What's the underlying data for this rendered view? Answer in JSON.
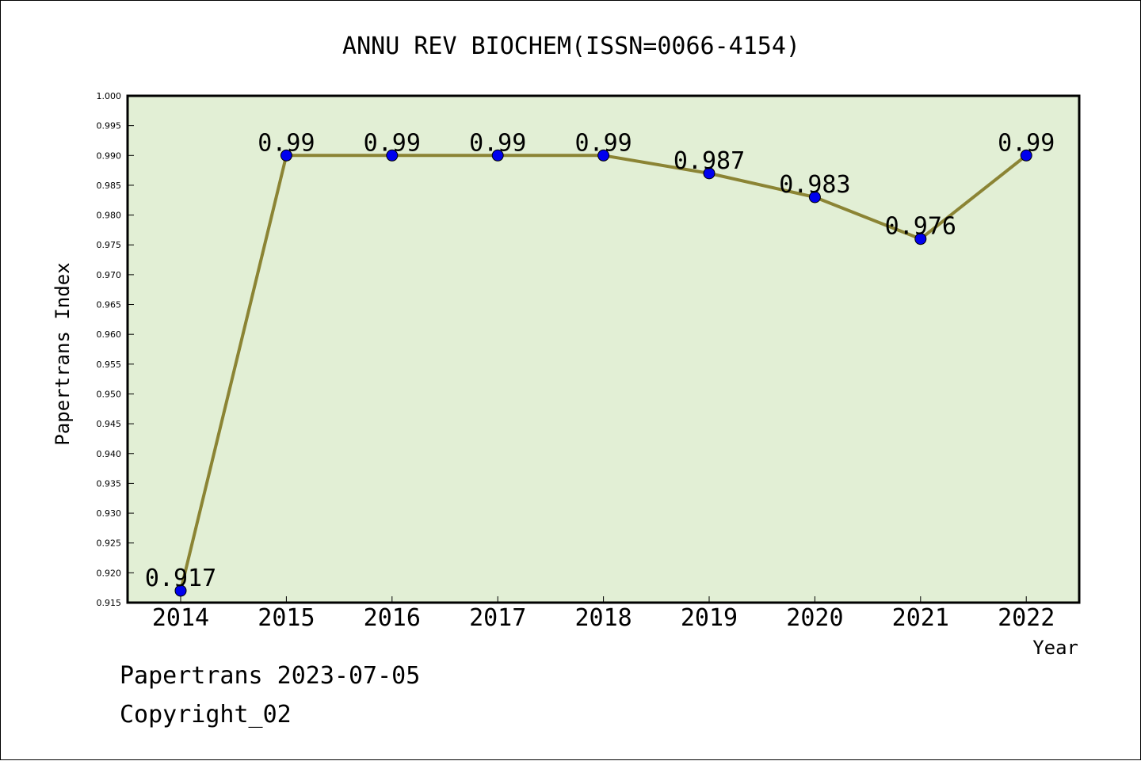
{
  "chart_data": {
    "type": "line",
    "title": "ANNU REV BIOCHEM(ISSN=0066-4154)",
    "xlabel": "Year",
    "ylabel": "Papertrans Index",
    "categories": [
      "2014",
      "2015",
      "2016",
      "2017",
      "2018",
      "2019",
      "2020",
      "2021",
      "2022"
    ],
    "series": [
      {
        "values": [
          0.917,
          0.99,
          0.99,
          0.99,
          0.99,
          0.987,
          0.983,
          0.976,
          0.99
        ],
        "data_labels": [
          "0.917",
          "0.99",
          "0.99",
          "0.99",
          "0.99",
          "0.987",
          "0.983",
          "0.976",
          "0.99"
        ]
      }
    ],
    "ylim": [
      0.915,
      1.0
    ],
    "yticks": [
      "0.915",
      "0.920",
      "0.925",
      "0.930",
      "0.935",
      "0.940",
      "0.945",
      "0.950",
      "0.955",
      "0.960",
      "0.965",
      "0.970",
      "0.975",
      "0.980",
      "0.985",
      "0.990",
      "0.995",
      "1.000"
    ],
    "grid": false,
    "colors": {
      "plot_background": "#e2efd5",
      "line": "#8b8434",
      "marker": "#0000ee"
    }
  },
  "footer": {
    "date_line": "Papertrans 2023-07-05",
    "copyright": "Copyright_02"
  }
}
